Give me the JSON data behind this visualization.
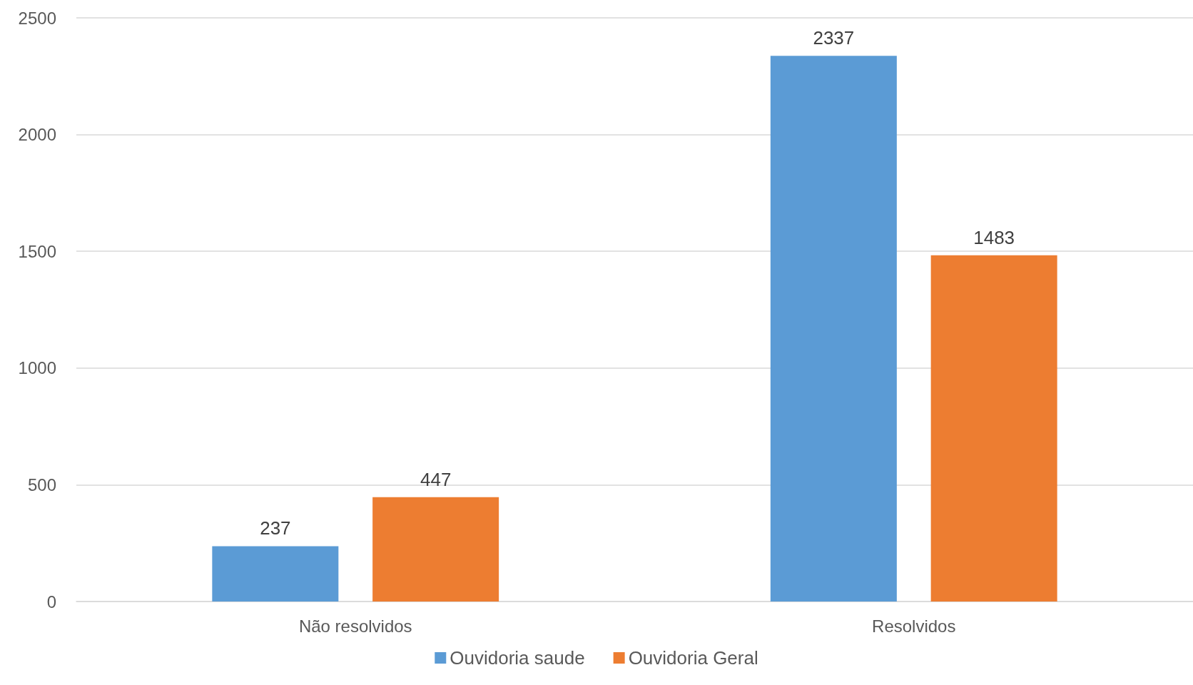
{
  "chart_data": {
    "type": "bar",
    "categories": [
      "Não resolvidos",
      "Resolvidos"
    ],
    "series": [
      {
        "name": "Ouvidoria saude",
        "color": "#5b9bd5",
        "values": [
          237,
          2337
        ]
      },
      {
        "name": "Ouvidoria Geral",
        "color": "#ed7d31",
        "values": [
          447,
          1483
        ]
      }
    ],
    "ylim": [
      0,
      2500
    ],
    "yticks": [
      0,
      500,
      1000,
      1500,
      2000,
      2500
    ],
    "grid": "y",
    "legend": "bottom",
    "data_labels": true
  }
}
